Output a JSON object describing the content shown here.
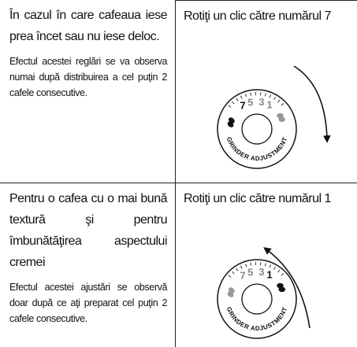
{
  "rows": [
    {
      "instruction": "În cazul în care cafeaua iese prea încet sau nu iese deloc.",
      "note": "Efectul acestei reglări se va observa numai după distribuirea a cel puţin 2 cafele consecutive.",
      "action": "Rotiţi un clic către numărul 7",
      "dial": {
        "numbers": [
          "7",
          "5",
          "3",
          "1"
        ],
        "label": "GRINDER ADJUSTMENT"
      }
    },
    {
      "instruction": "Pentru o cafea cu o mai bună textură şi pentru îmbunătăţirea aspectului cremei",
      "note": "Efectul acestei ajustări se observă doar după ce aţi preparat cel puţin 2 cafele consecutive.",
      "action": "Rotiţi un clic către numărul 1",
      "dial": {
        "numbers": [
          "7",
          "5",
          "3",
          "1"
        ],
        "label": "GRINDER ADJUSTMENT"
      }
    }
  ]
}
